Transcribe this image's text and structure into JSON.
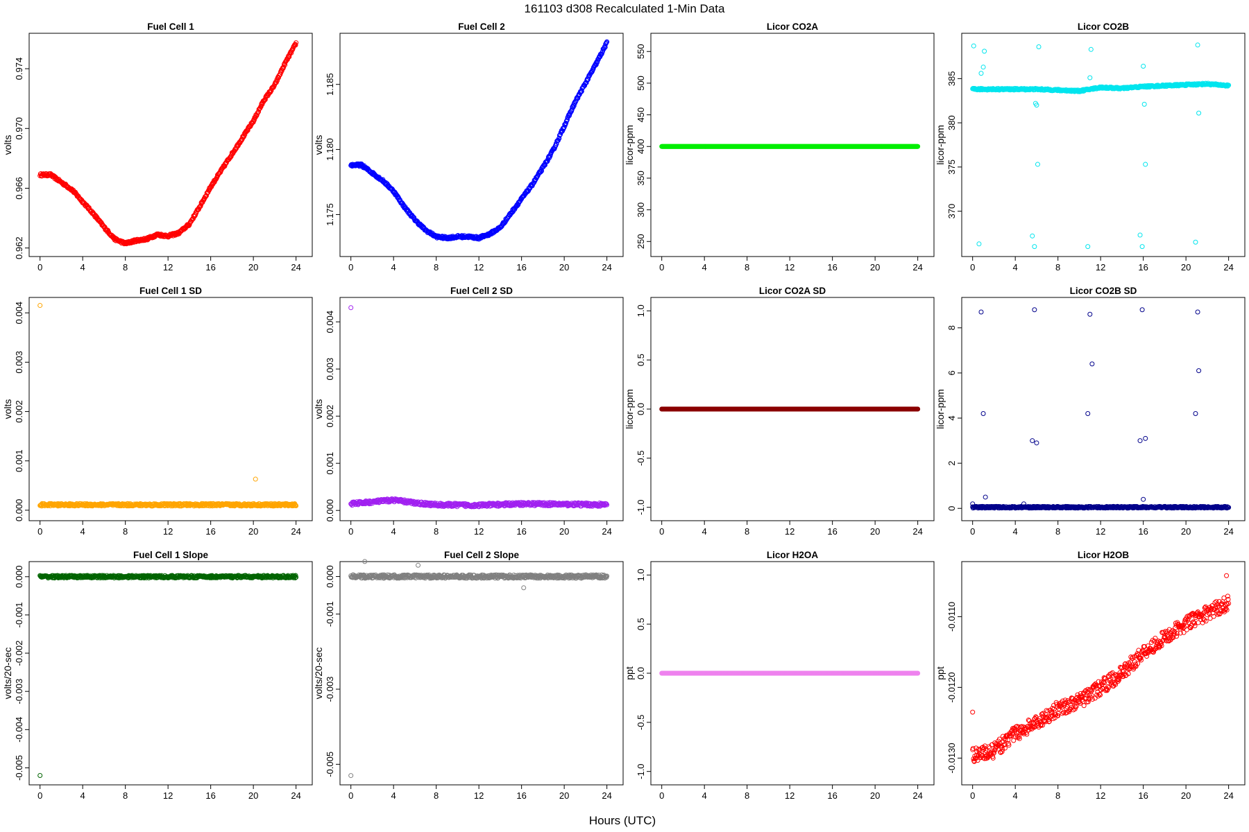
{
  "figure": {
    "title": "161103   d308   Recalculated 1-Min Data",
    "xlabel": "Hours (UTC)"
  },
  "chart_data": [
    {
      "type": "scatter",
      "title": "Fuel Cell 1",
      "ylabel": "volts",
      "color": "#ff0000",
      "xlim": [
        -0.5,
        25
      ],
      "ylim": [
        0.9618,
        0.976
      ],
      "xticks": [
        0,
        4,
        8,
        12,
        16,
        20,
        24
      ],
      "yticks": [
        "0.962",
        "0.966",
        "0.970",
        "0.974"
      ],
      "series": [
        {
          "x": [
            0,
            1,
            2,
            3,
            4,
            5,
            6,
            7,
            8,
            9,
            10,
            11,
            12,
            13,
            14,
            15,
            16,
            17,
            18,
            19,
            20,
            21,
            22,
            23,
            24
          ],
          "y": [
            0.9669,
            0.9669,
            0.9664,
            0.9659,
            0.9651,
            0.9643,
            0.9634,
            0.9626,
            0.9623,
            0.9625,
            0.9626,
            0.9629,
            0.9628,
            0.963,
            0.9636,
            0.9648,
            0.9661,
            0.9672,
            0.9683,
            0.9694,
            0.9705,
            0.9719,
            0.9729,
            0.9744,
            0.9757
          ]
        }
      ]
    },
    {
      "type": "scatter",
      "title": "Fuel Cell 2",
      "ylabel": "volts",
      "color": "#0000ff",
      "xlim": [
        -0.5,
        25
      ],
      "ylim": [
        1.1722,
        1.1885
      ],
      "xticks": [
        0,
        4,
        8,
        12,
        16,
        20,
        24
      ],
      "yticks": [
        "1.175",
        "1.180",
        "1.185"
      ],
      "series": [
        {
          "x": [
            0,
            1,
            2,
            3,
            4,
            5,
            6,
            7,
            8,
            9,
            10,
            11,
            12,
            13,
            14,
            15,
            16,
            17,
            18,
            19,
            20,
            21,
            22,
            23,
            24
          ],
          "y": [
            1.1788,
            1.1788,
            1.1782,
            1.1776,
            1.1768,
            1.1756,
            1.1746,
            1.1738,
            1.1733,
            1.1732,
            1.1733,
            1.1733,
            1.1732,
            1.1735,
            1.174,
            1.1751,
            1.1762,
            1.1773,
            1.1786,
            1.18,
            1.1818,
            1.1836,
            1.1851,
            1.1866,
            1.1882
          ]
        }
      ]
    },
    {
      "type": "scatter",
      "title": "Licor CO2A",
      "ylabel": "licor-ppm",
      "color": "#00ee00",
      "xlim": [
        -0.5,
        25
      ],
      "ylim": [
        235,
        570
      ],
      "xticks": [
        0,
        4,
        8,
        12,
        16,
        20,
        24
      ],
      "yticks": [
        "250",
        "300",
        "350",
        "400",
        "450",
        "500",
        "550"
      ],
      "series": [
        {
          "x": [
            0,
            24
          ],
          "y": [
            400,
            400
          ]
        }
      ]
    },
    {
      "type": "scatter",
      "title": "Licor CO2B",
      "ylabel": "licor-ppm",
      "color": "#00e5ee",
      "xlim": [
        -0.5,
        25
      ],
      "ylim": [
        365.5,
        389.5
      ],
      "xticks": [
        0,
        4,
        8,
        12,
        16,
        20,
        24
      ],
      "yticks": [
        "370",
        "375",
        "380",
        "385"
      ],
      "series": [
        {
          "x": [
            0,
            2,
            4,
            6,
            8,
            10,
            12,
            14,
            16,
            18,
            20,
            22,
            24
          ],
          "y": [
            383.8,
            383.8,
            383.8,
            383.8,
            383.7,
            383.6,
            384.0,
            383.9,
            384.1,
            384.2,
            384.3,
            384.4,
            384.2
          ]
        }
      ],
      "outliers": {
        "x": [
          0.1,
          0.6,
          0.8,
          1.0,
          1.1,
          5.6,
          5.8,
          5.9,
          6.0,
          6.1,
          6.2,
          10.8,
          11.0,
          11.1,
          15.7,
          15.9,
          16.0,
          16.1,
          16.2,
          20.9,
          21.1,
          21.2
        ],
        "y": [
          388.7,
          366.3,
          385.6,
          386.3,
          388.1,
          367.2,
          366.0,
          382.2,
          382.0,
          375.3,
          388.6,
          366.0,
          385.1,
          388.3,
          367.3,
          366.0,
          386.4,
          382.1,
          375.3,
          366.5,
          388.8,
          381.1
        ]
      }
    },
    {
      "type": "scatter",
      "title": "Fuel Cell 1 SD",
      "ylabel": "volts",
      "color": "#ffa500",
      "xlim": [
        -0.5,
        25
      ],
      "ylim": [
        -0.0001,
        0.0042
      ],
      "xticks": [
        0,
        4,
        8,
        12,
        16,
        20,
        24
      ],
      "yticks": [
        "0.000",
        "0.001",
        "0.002",
        "0.003",
        "0.004"
      ],
      "series": [
        {
          "x": [
            0,
            24
          ],
          "y": [
            0.00011,
            0.00011
          ]
        }
      ],
      "outliers": {
        "x": [
          0.0,
          20.2
        ],
        "y": [
          0.00415,
          0.00063
        ]
      }
    },
    {
      "type": "scatter",
      "title": "Fuel Cell 2 SD",
      "ylabel": "volts",
      "color": "#a020f0",
      "xlim": [
        -0.5,
        25
      ],
      "ylim": [
        -0.0001,
        0.0044
      ],
      "xticks": [
        0,
        4,
        8,
        12,
        16,
        20,
        24
      ],
      "yticks": [
        "0.000",
        "0.001",
        "0.002",
        "0.003",
        "0.004"
      ],
      "series": [
        {
          "x": [
            0,
            2,
            4,
            6,
            8,
            12,
            16,
            20,
            24
          ],
          "y": [
            0.00014,
            0.00018,
            0.00022,
            0.00016,
            0.00012,
            0.00011,
            0.00014,
            0.00013,
            0.00012
          ]
        }
      ],
      "outliers": {
        "x": [
          0.0
        ],
        "y": [
          0.0043
        ]
      }
    },
    {
      "type": "scatter",
      "title": "Licor CO2A SD",
      "ylabel": "licor-ppm",
      "color": "#8b0000",
      "xlim": [
        -0.5,
        25
      ],
      "ylim": [
        -1.08,
        1.08
      ],
      "xticks": [
        0,
        4,
        8,
        12,
        16,
        20,
        24
      ],
      "yticks": [
        "-1.0",
        "-0.5",
        "0.0",
        "0.5",
        "1.0"
      ],
      "series": [
        {
          "x": [
            0,
            24
          ],
          "y": [
            0,
            0
          ]
        }
      ]
    },
    {
      "type": "scatter",
      "title": "Licor CO2B SD",
      "ylabel": "licor-ppm",
      "color": "#00008b",
      "xlim": [
        -0.5,
        25
      ],
      "ylim": [
        -0.3,
        9.1
      ],
      "xticks": [
        0,
        4,
        8,
        12,
        16,
        20,
        24
      ],
      "yticks": [
        "0",
        "2",
        "4",
        "6",
        "8"
      ],
      "series": [
        {
          "x": [
            0,
            24
          ],
          "y": [
            0.05,
            0.05
          ]
        }
      ],
      "outliers": {
        "x": [
          0.0,
          0.8,
          1.0,
          1.2,
          4.8,
          5.6,
          5.8,
          6.0,
          10.8,
          11.0,
          11.2,
          15.7,
          15.9,
          16.0,
          16.2,
          20.9,
          21.1,
          21.2
        ],
        "y": [
          0.2,
          8.7,
          4.2,
          0.5,
          0.2,
          3.0,
          8.8,
          2.9,
          4.2,
          8.6,
          6.4,
          3.0,
          8.8,
          0.4,
          3.1,
          4.2,
          8.7,
          6.1
        ]
      }
    },
    {
      "type": "scatter",
      "title": "Fuel Cell 1 Slope",
      "ylabel": "volts/20-sec",
      "color": "#006400",
      "xlim": [
        -0.5,
        25
      ],
      "ylim": [
        -0.0053,
        0.00025
      ],
      "xticks": [
        0,
        4,
        8,
        12,
        16,
        20,
        24
      ],
      "yticks": [
        "-0.005",
        "-0.004",
        "-0.003",
        "-0.002",
        "-0.001",
        "0.000"
      ],
      "series": [
        {
          "x": [
            0,
            24
          ],
          "y": [
            0,
            0
          ]
        }
      ],
      "outliers": {
        "x": [
          0.0
        ],
        "y": [
          -0.0052
        ]
      }
    },
    {
      "type": "scatter",
      "title": "Fuel Cell 2 Slope",
      "ylabel": "volts/20-sec",
      "color": "#808080",
      "xlim": [
        -0.5,
        25
      ],
      "ylim": [
        -0.0054,
        0.00025
      ],
      "xticks": [
        0,
        4,
        8,
        12,
        16,
        20,
        24
      ],
      "yticks": [
        "-0.005",
        "-0.003",
        "-0.001",
        "0.000"
      ],
      "series": [
        {
          "x": [
            0,
            24
          ],
          "y": [
            0,
            0
          ]
        }
      ],
      "outliers": {
        "x": [
          0.0,
          1.3,
          6.3,
          16.2
        ],
        "y": [
          -0.0053,
          0.0004,
          0.0003,
          -0.0003
        ]
      }
    },
    {
      "type": "scatter",
      "title": "Licor H2OA",
      "ylabel": "ppt",
      "color": "#ee82ee",
      "xlim": [
        -0.5,
        25
      ],
      "ylim": [
        -1.08,
        1.08
      ],
      "xticks": [
        0,
        4,
        8,
        12,
        16,
        20,
        24
      ],
      "yticks": [
        "-1.0",
        "-0.5",
        "0.0",
        "0.5",
        "1.0"
      ],
      "series": [
        {
          "x": [
            0,
            24
          ],
          "y": [
            0,
            0
          ]
        }
      ]
    },
    {
      "type": "scatter",
      "title": "Licor H2OB",
      "ylabel": "ppt",
      "color": "#ff0000",
      "xlim": [
        -0.5,
        25
      ],
      "ylim": [
        -0.0133,
        -0.0103
      ],
      "xticks": [
        0,
        4,
        8,
        12,
        16,
        20,
        24
      ],
      "yticks": [
        "-0.0130",
        "-0.0120",
        "-0.0110"
      ],
      "series": [
        {
          "x": [
            0,
            2,
            4,
            6,
            8,
            10,
            12,
            14,
            16,
            18,
            20,
            22,
            24
          ],
          "y": [
            -0.01295,
            -0.0129,
            -0.01265,
            -0.0125,
            -0.0123,
            -0.0122,
            -0.012,
            -0.0118,
            -0.0115,
            -0.0113,
            -0.0111,
            -0.01095,
            -0.0108
          ]
        }
      ],
      "outliers": {
        "x": [
          0.0,
          23.8
        ],
        "y": [
          -0.01235,
          -0.01042
        ]
      }
    }
  ]
}
